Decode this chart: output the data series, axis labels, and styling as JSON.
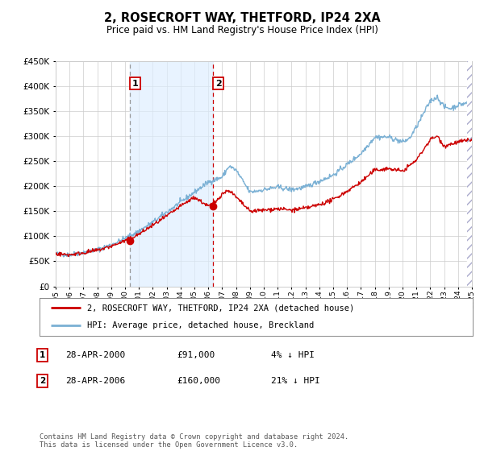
{
  "title": "2, ROSECROFT WAY, THETFORD, IP24 2XA",
  "subtitle": "Price paid vs. HM Land Registry's House Price Index (HPI)",
  "legend_line1": "2, ROSECROFT WAY, THETFORD, IP24 2XA (detached house)",
  "legend_line2": "HPI: Average price, detached house, Breckland",
  "sale1_date": "28-APR-2000",
  "sale1_price": "£91,000",
  "sale1_hpi": "4% ↓ HPI",
  "sale2_date": "28-APR-2006",
  "sale2_price": "£160,000",
  "sale2_hpi": "21% ↓ HPI",
  "footnote": "Contains HM Land Registry data © Crown copyright and database right 2024.\nThis data is licensed under the Open Government Licence v3.0.",
  "red_color": "#cc0000",
  "blue_color": "#7ab0d4",
  "bg_color": "#ffffff",
  "grid_color": "#cccccc",
  "shade_color": "#ddeeff",
  "ylim": [
    0,
    450000
  ],
  "yticks": [
    0,
    50000,
    100000,
    150000,
    200000,
    250000,
    300000,
    350000,
    400000,
    450000
  ],
  "sale1_year": 2000.33,
  "sale2_year": 2006.33,
  "sale1_val": 91000,
  "sale2_val": 160000,
  "xmin": 1995,
  "xmax": 2025,
  "hpi_key_years": [
    1995,
    1996,
    1997,
    1998,
    1999,
    2000,
    2001,
    2002,
    2003,
    2004,
    2005,
    2006,
    2007,
    2007.5,
    2008.0,
    2008.5,
    2009,
    2010,
    2011,
    2012,
    2013,
    2014,
    2015,
    2016,
    2017,
    2018,
    2019,
    2020,
    2020.5,
    2021,
    2022,
    2022.5,
    2023,
    2023.5,
    2024,
    2025
  ],
  "hpi_key_vals": [
    65000,
    63000,
    68000,
    73000,
    83000,
    96000,
    110000,
    128000,
    148000,
    168000,
    188000,
    208000,
    218000,
    240000,
    232000,
    210000,
    188000,
    193000,
    198000,
    193000,
    198000,
    210000,
    222000,
    243000,
    265000,
    298000,
    298000,
    288000,
    295000,
    318000,
    370000,
    378000,
    358000,
    355000,
    362000,
    368000
  ],
  "red_key_years": [
    1995,
    1996,
    1997,
    1998,
    1999,
    2000,
    2001,
    2002,
    2003,
    2004,
    2005,
    2006,
    2006.5,
    2007,
    2007.5,
    2008,
    2009,
    2010,
    2011,
    2012,
    2013,
    2014,
    2015,
    2016,
    2017,
    2018,
    2019,
    2020,
    2021,
    2022,
    2022.5,
    2023,
    2024,
    2025
  ],
  "red_key_vals": [
    65000,
    63000,
    67000,
    72000,
    80000,
    91000,
    104000,
    122000,
    140000,
    160000,
    178000,
    160000,
    168000,
    185000,
    192000,
    178000,
    150000,
    152000,
    155000,
    152000,
    156000,
    163000,
    173000,
    190000,
    208000,
    232000,
    235000,
    230000,
    252000,
    293000,
    300000,
    280000,
    288000,
    293000
  ]
}
